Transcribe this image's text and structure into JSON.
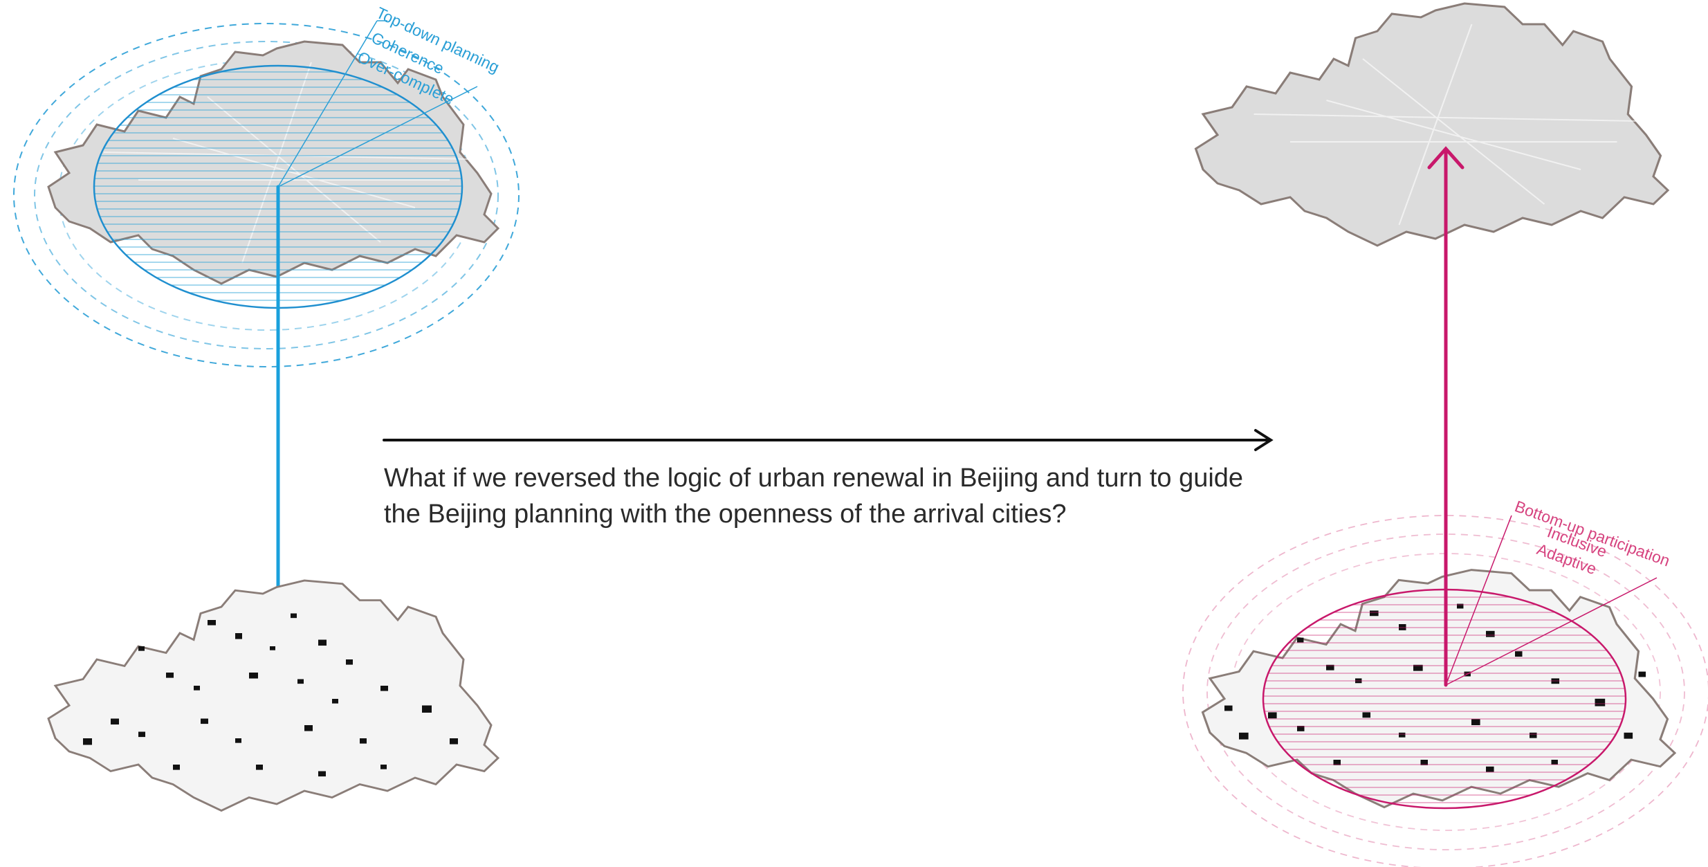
{
  "question": {
    "line1": "What if we reversed the logic of urban renewal in Beijing and turn to guide",
    "line2": "the Beijing planning  with the openness of the arrival cities?"
  },
  "topdown": {
    "labels": [
      "Top-down planning",
      "Coherence",
      "Over-complete"
    ],
    "color": "#2a9fd6"
  },
  "bottomup": {
    "labels": [
      "Bottom-up participation",
      "Inclusive",
      "Adaptive"
    ],
    "color": "#c8186b"
  },
  "colors": {
    "map_fill": "#dcdcdc",
    "map_outline": "#8a7d78",
    "spot": "#111111",
    "arrow": "#111111"
  }
}
